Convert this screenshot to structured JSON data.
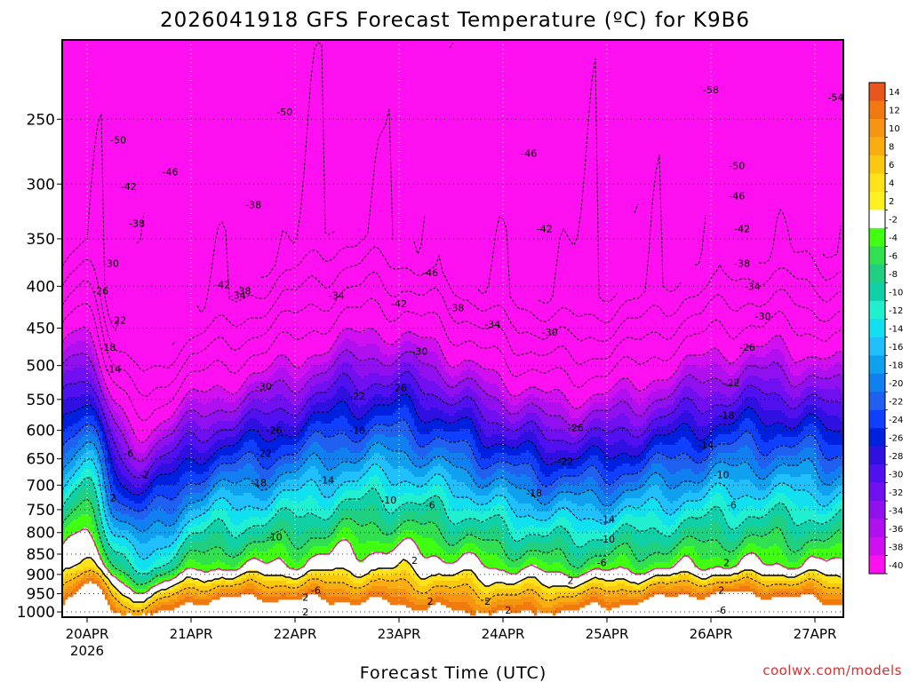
{
  "chart_data": {
    "type": "heatmap",
    "title": "2026041918 GFS Forecast Temperature (ºC) for K9B6",
    "xlabel": "Forecast Time (UTC)",
    "ylabel": "",
    "credit": "coolwx.com/models",
    "x_ticks": [
      "20APR",
      "21APR",
      "22APR",
      "23APR",
      "24APR",
      "25APR",
      "26APR",
      "27APR"
    ],
    "x_tick_sublabel": "2026",
    "y_ticks": [
      250,
      300,
      350,
      400,
      450,
      500,
      550,
      600,
      650,
      700,
      750,
      800,
      850,
      900,
      950,
      1000
    ],
    "y_scale": "log-pressure",
    "ylim": [
      1015,
      200
    ],
    "grid": true,
    "colorbar": {
      "labels": [
        14,
        12,
        10,
        8,
        6,
        4,
        2,
        -2,
        -4,
        -6,
        -8,
        -10,
        -12,
        -14,
        -16,
        -18,
        -20,
        -22,
        -24,
        -26,
        -28,
        -30,
        -32,
        -34,
        -36,
        -38,
        -40
      ],
      "colors": [
        "#e8561e",
        "#f07a10",
        "#f59512",
        "#f9ad10",
        "#fbc810",
        "#ffe218",
        "#fff020",
        "#ffffff",
        "#40ff10",
        "#30e050",
        "#20d080",
        "#10d0a8",
        "#20f0d0",
        "#10e0f0",
        "#20c0ff",
        "#10a0f0",
        "#1080f0",
        "#2060f0",
        "#1040ff",
        "#0020e0",
        "#3010e0",
        "#5010f0",
        "#7010f0",
        "#9010f0",
        "#b010f0",
        "#d010f0",
        "#ff10f0"
      ]
    },
    "contour_labels": [
      {
        "t": 0.3,
        "p": 265,
        "v": -50
      },
      {
        "t": 0.4,
        "p": 302,
        "v": -42
      },
      {
        "t": 0.48,
        "p": 335,
        "v": -38
      },
      {
        "t": 0.23,
        "p": 375,
        "v": -30
      },
      {
        "t": 0.13,
        "p": 405,
        "v": -26
      },
      {
        "t": 0.3,
        "p": 440,
        "v": -22
      },
      {
        "t": 0.2,
        "p": 475,
        "v": -18
      },
      {
        "t": 0.25,
        "p": 505,
        "v": -14
      },
      {
        "t": 0.4,
        "p": 640,
        "v": -6
      },
      {
        "t": 0.55,
        "p": 680,
        "v": -2
      },
      {
        "t": 0.25,
        "p": 725,
        "v": 2
      },
      {
        "t": 0.8,
        "p": 290,
        "v": -46
      },
      {
        "t": 1.45,
        "p": 410,
        "v": -34
      },
      {
        "t": 1.6,
        "p": 318,
        "v": -38
      },
      {
        "t": 1.3,
        "p": 398,
        "v": -42
      },
      {
        "t": 1.5,
        "p": 405,
        "v": -38
      },
      {
        "t": 1.7,
        "p": 530,
        "v": -30
      },
      {
        "t": 1.8,
        "p": 600,
        "v": -26
      },
      {
        "t": 1.7,
        "p": 640,
        "v": -22
      },
      {
        "t": 1.65,
        "p": 695,
        "v": -18
      },
      {
        "t": 1.8,
        "p": 810,
        "v": -10
      },
      {
        "t": 2.2,
        "p": 940,
        "v": -6
      },
      {
        "t": 2.1,
        "p": 960,
        "v": 2
      },
      {
        "t": 2.1,
        "p": 1000,
        "v": 2
      },
      {
        "t": 1.9,
        "p": 245,
        "v": -50
      },
      {
        "t": 3.3,
        "p": 385,
        "v": -46
      },
      {
        "t": 3.0,
        "p": 420,
        "v": -42
      },
      {
        "t": 2.4,
        "p": 410,
        "v": -34
      },
      {
        "t": 3.2,
        "p": 480,
        "v": -30
      },
      {
        "t": 2.6,
        "p": 545,
        "v": -22
      },
      {
        "t": 3.0,
        "p": 532,
        "v": -26
      },
      {
        "t": 2.6,
        "p": 600,
        "v": -18
      },
      {
        "t": 2.3,
        "p": 690,
        "v": -14
      },
      {
        "t": 2.9,
        "p": 730,
        "v": -10
      },
      {
        "t": 3.3,
        "p": 740,
        "v": -6
      },
      {
        "t": 3.15,
        "p": 865,
        "v": 2
      },
      {
        "t": 3.3,
        "p": 970,
        "v": 2
      },
      {
        "t": 3.55,
        "p": 425,
        "v": -38
      },
      {
        "t": 3.9,
        "p": 445,
        "v": -34
      },
      {
        "t": 3.85,
        "p": 970,
        "v": 2
      },
      {
        "t": 4.25,
        "p": 275,
        "v": -46
      },
      {
        "t": 4.4,
        "p": 340,
        "v": -42
      },
      {
        "t": 4.45,
        "p": 455,
        "v": -30
      },
      {
        "t": 4.7,
        "p": 595,
        "v": -26
      },
      {
        "t": 4.6,
        "p": 655,
        "v": -22
      },
      {
        "t": 4.3,
        "p": 715,
        "v": -18
      },
      {
        "t": 5.0,
        "p": 770,
        "v": -14
      },
      {
        "t": 5.0,
        "p": 815,
        "v": -10
      },
      {
        "t": 4.95,
        "p": 870,
        "v": -6
      },
      {
        "t": 4.65,
        "p": 915,
        "v": 2
      },
      {
        "t": 6.0,
        "p": 230,
        "v": -58
      },
      {
        "t": 6.25,
        "p": 285,
        "v": -50
      },
      {
        "t": 6.25,
        "p": 310,
        "v": -46
      },
      {
        "t": 6.3,
        "p": 340,
        "v": -42
      },
      {
        "t": 6.3,
        "p": 375,
        "v": -38
      },
      {
        "t": 6.4,
        "p": 400,
        "v": -34
      },
      {
        "t": 6.5,
        "p": 435,
        "v": -30
      },
      {
        "t": 6.35,
        "p": 475,
        "v": -26
      },
      {
        "t": 6.2,
        "p": 525,
        "v": -22
      },
      {
        "t": 6.15,
        "p": 575,
        "v": -18
      },
      {
        "t": 5.95,
        "p": 625,
        "v": -14
      },
      {
        "t": 6.1,
        "p": 680,
        "v": -10
      },
      {
        "t": 6.2,
        "p": 740,
        "v": -6
      },
      {
        "t": 6.15,
        "p": 870,
        "v": 2
      },
      {
        "t": 6.1,
        "p": 940,
        "v": 2
      },
      {
        "t": 6.1,
        "p": 995,
        "v": -6
      },
      {
        "t": 7.2,
        "p": 235,
        "v": -54
      },
      {
        "t": 4.05,
        "p": 995,
        "v": 2
      }
    ]
  }
}
